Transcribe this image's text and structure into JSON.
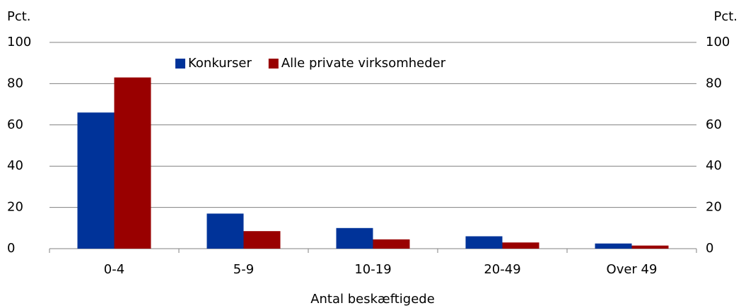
{
  "chart_data": {
    "type": "bar",
    "ylabel": "Pct.",
    "y2label": "Pct.",
    "xlabel": "Antal beskæftigede",
    "categories": [
      "0-4",
      "5-9",
      "10-19",
      "20-49",
      "Over 49"
    ],
    "series": [
      {
        "name": "Konkurser",
        "color": "#003399",
        "values": [
          66,
          17,
          10,
          6,
          2.5
        ]
      },
      {
        "name": "Alle private virksomheder",
        "color": "#990000",
        "values": [
          83,
          8.5,
          4.5,
          3,
          1.5
        ]
      }
    ],
    "ylim": [
      0,
      100
    ],
    "yticks": [
      0,
      20,
      40,
      60,
      80,
      100
    ],
    "y2lim": [
      0,
      100
    ],
    "y2ticks": [
      0,
      20,
      40,
      60,
      80,
      100
    ],
    "grid": true,
    "legend": "top"
  }
}
